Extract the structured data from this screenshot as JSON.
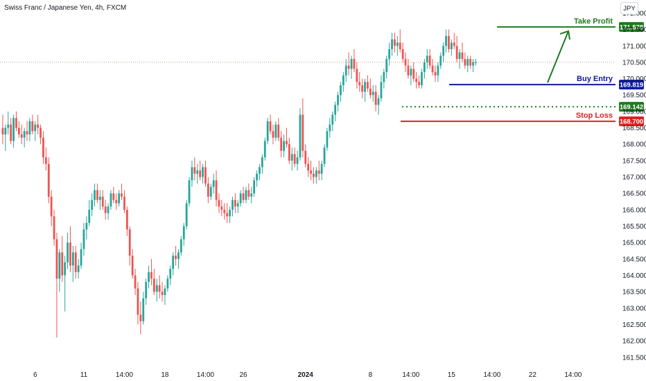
{
  "chart_data": {
    "type": "candlestick",
    "title": "Swiss Franc / Japanese Yen, 4h, FXCM",
    "currency": "JPY",
    "y_ticks": [
      "172.000",
      "171.500",
      "171.000",
      "170.500",
      "170.000",
      "169.500",
      "169.000",
      "168.500",
      "168.000",
      "167.500",
      "167.000",
      "166.500",
      "166.000",
      "165.500",
      "165.000",
      "164.500",
      "164.000",
      "163.500",
      "163.000",
      "162.500",
      "162.000",
      "161.500"
    ],
    "ylim": [
      161.2,
      172.4
    ],
    "x_ticks": [
      {
        "label": "6",
        "bold": false,
        "bar": 12
      },
      {
        "label": "11",
        "bold": false,
        "bar": 30
      },
      {
        "label": "14:00",
        "bold": false,
        "bar": 45
      },
      {
        "label": "18",
        "bold": false,
        "bar": 60
      },
      {
        "label": "14:00",
        "bold": false,
        "bar": 75
      },
      {
        "label": "26",
        "bold": false,
        "bar": 89
      },
      {
        "label": "2024",
        "bold": true,
        "bar": 112
      },
      {
        "label": "8",
        "bold": false,
        "bar": 136
      },
      {
        "label": "14:00",
        "bold": false,
        "bar": 151
      },
      {
        "label": "15",
        "bold": false,
        "bar": 166
      },
      {
        "label": "14:00",
        "bold": false,
        "bar": 181
      },
      {
        "label": "22",
        "bold": false,
        "bar": 196
      },
      {
        "label": "14:00",
        "bold": false,
        "bar": 211
      }
    ],
    "bar_count_window": 235,
    "candles": [
      [
        168.5,
        168.9,
        168.0,
        168.3
      ],
      [
        168.3,
        168.6,
        167.8,
        168.5
      ],
      [
        168.5,
        169.0,
        168.3,
        168.6
      ],
      [
        168.6,
        168.8,
        168.0,
        168.1
      ],
      [
        168.1,
        168.9,
        167.9,
        168.8
      ],
      [
        168.8,
        169.0,
        168.4,
        168.5
      ],
      [
        168.5,
        168.7,
        168.2,
        168.3
      ],
      [
        168.3,
        168.6,
        168.0,
        168.2
      ],
      [
        168.2,
        168.5,
        167.9,
        168.4
      ],
      [
        168.4,
        168.7,
        168.1,
        168.3
      ],
      [
        168.3,
        168.8,
        168.1,
        168.7
      ],
      [
        168.7,
        168.9,
        168.3,
        168.4
      ],
      [
        168.4,
        168.7,
        168.1,
        168.6
      ],
      [
        168.6,
        168.9,
        168.3,
        168.5
      ],
      [
        168.5,
        168.6,
        168.0,
        168.2
      ],
      [
        168.2,
        168.4,
        167.4,
        167.6
      ],
      [
        167.6,
        167.9,
        167.2,
        167.4
      ],
      [
        167.4,
        167.6,
        166.2,
        166.4
      ],
      [
        166.4,
        166.6,
        165.5,
        165.8
      ],
      [
        165.8,
        166.0,
        164.9,
        165.1
      ],
      [
        165.1,
        165.3,
        162.1,
        163.9
      ],
      [
        163.9,
        164.8,
        163.5,
        164.7
      ],
      [
        164.7,
        165.2,
        163.8,
        164.0
      ],
      [
        164.0,
        164.6,
        162.9,
        164.4
      ],
      [
        164.4,
        165.3,
        164.2,
        165.0
      ],
      [
        165.0,
        165.5,
        164.1,
        164.3
      ],
      [
        164.3,
        164.9,
        163.8,
        164.7
      ],
      [
        164.7,
        164.9,
        163.9,
        164.1
      ],
      [
        164.1,
        164.5,
        163.9,
        164.3
      ],
      [
        164.3,
        165.0,
        164.2,
        164.8
      ],
      [
        164.8,
        165.6,
        164.6,
        165.4
      ],
      [
        165.4,
        165.8,
        165.1,
        165.6
      ],
      [
        165.6,
        166.3,
        165.5,
        166.0
      ],
      [
        166.0,
        166.5,
        165.8,
        166.3
      ],
      [
        166.3,
        166.8,
        166.1,
        166.6
      ],
      [
        166.6,
        166.8,
        166.2,
        166.3
      ],
      [
        166.3,
        166.6,
        166.0,
        166.4
      ],
      [
        166.4,
        166.6,
        166.0,
        166.1
      ],
      [
        166.1,
        166.3,
        165.7,
        165.9
      ],
      [
        165.9,
        166.2,
        165.7,
        166.1
      ],
      [
        166.1,
        166.6,
        166.0,
        166.5
      ],
      [
        166.5,
        166.7,
        166.2,
        166.3
      ],
      [
        166.3,
        166.5,
        166.0,
        166.2
      ],
      [
        166.2,
        166.6,
        166.1,
        166.5
      ],
      [
        166.5,
        166.8,
        166.3,
        166.4
      ],
      [
        166.4,
        166.6,
        165.9,
        166.0
      ],
      [
        166.0,
        166.1,
        165.2,
        165.4
      ],
      [
        165.4,
        165.5,
        164.3,
        164.6
      ],
      [
        164.6,
        164.8,
        163.9,
        164.0
      ],
      [
        164.0,
        164.2,
        163.4,
        163.6
      ],
      [
        163.6,
        163.8,
        162.5,
        162.8
      ],
      [
        162.8,
        163.2,
        162.2,
        162.6
      ],
      [
        162.6,
        163.5,
        162.5,
        163.3
      ],
      [
        163.3,
        163.9,
        163.1,
        163.8
      ],
      [
        163.8,
        164.3,
        163.6,
        164.1
      ],
      [
        164.1,
        164.5,
        163.7,
        163.9
      ],
      [
        163.9,
        164.2,
        163.4,
        163.5
      ],
      [
        163.5,
        163.9,
        163.2,
        163.7
      ],
      [
        163.7,
        164.0,
        163.3,
        163.5
      ],
      [
        163.5,
        163.8,
        163.2,
        163.4
      ],
      [
        163.4,
        163.7,
        163.1,
        163.6
      ],
      [
        163.6,
        164.0,
        163.5,
        163.9
      ],
      [
        163.9,
        164.3,
        163.7,
        164.2
      ],
      [
        164.2,
        164.7,
        164.0,
        164.6
      ],
      [
        164.6,
        164.9,
        164.3,
        164.5
      ],
      [
        164.5,
        164.8,
        164.2,
        164.7
      ],
      [
        164.7,
        165.2,
        164.6,
        165.1
      ],
      [
        165.1,
        165.6,
        164.9,
        165.5
      ],
      [
        165.5,
        166.3,
        165.4,
        166.2
      ],
      [
        166.2,
        167.0,
        166.1,
        166.9
      ],
      [
        166.9,
        167.5,
        166.7,
        167.3
      ],
      [
        167.3,
        167.6,
        166.9,
        167.1
      ],
      [
        167.1,
        167.4,
        166.8,
        167.2
      ],
      [
        167.2,
        167.5,
        166.9,
        167.0
      ],
      [
        167.0,
        167.4,
        166.8,
        167.3
      ],
      [
        167.3,
        167.5,
        166.7,
        166.8
      ],
      [
        166.8,
        167.0,
        166.2,
        166.4
      ],
      [
        166.4,
        166.8,
        166.3,
        166.7
      ],
      [
        166.7,
        167.1,
        166.5,
        166.9
      ],
      [
        166.9,
        167.2,
        166.1,
        166.3
      ],
      [
        166.3,
        166.5,
        165.9,
        166.1
      ],
      [
        166.1,
        166.3,
        165.8,
        166.0
      ],
      [
        166.0,
        166.2,
        165.7,
        165.9
      ],
      [
        165.9,
        166.2,
        165.6,
        165.8
      ],
      [
        165.8,
        166.1,
        165.6,
        166.0
      ],
      [
        166.0,
        166.4,
        165.8,
        166.3
      ],
      [
        166.3,
        166.5,
        165.9,
        166.1
      ],
      [
        166.1,
        166.3,
        165.9,
        166.2
      ],
      [
        166.2,
        166.6,
        166.1,
        166.5
      ],
      [
        166.5,
        166.7,
        166.2,
        166.3
      ],
      [
        166.3,
        166.7,
        166.2,
        166.6
      ],
      [
        166.6,
        166.8,
        166.3,
        166.4
      ],
      [
        166.4,
        166.7,
        166.2,
        166.5
      ],
      [
        166.5,
        167.0,
        166.4,
        166.9
      ],
      [
        166.9,
        167.2,
        166.7,
        167.1
      ],
      [
        167.1,
        167.4,
        166.9,
        167.3
      ],
      [
        167.3,
        167.7,
        167.1,
        167.6
      ],
      [
        167.6,
        168.2,
        167.5,
        168.1
      ],
      [
        168.1,
        168.8,
        168.0,
        168.7
      ],
      [
        168.7,
        168.9,
        168.3,
        168.4
      ],
      [
        168.4,
        168.6,
        168.0,
        168.2
      ],
      [
        168.2,
        168.7,
        168.1,
        168.6
      ],
      [
        168.6,
        168.8,
        168.1,
        168.2
      ],
      [
        168.2,
        168.4,
        167.6,
        167.8
      ],
      [
        167.8,
        168.3,
        167.6,
        168.1
      ],
      [
        168.1,
        168.5,
        167.9,
        168.0
      ],
      [
        168.0,
        168.2,
        167.4,
        167.5
      ],
      [
        167.5,
        167.9,
        167.2,
        167.7
      ],
      [
        167.7,
        167.9,
        167.3,
        167.4
      ],
      [
        167.4,
        167.8,
        167.2,
        167.6
      ],
      [
        167.6,
        169.1,
        167.5,
        168.9
      ],
      [
        168.9,
        169.4,
        167.6,
        167.8
      ],
      [
        167.8,
        168.0,
        167.3,
        167.4
      ],
      [
        167.4,
        167.6,
        167.0,
        167.2
      ],
      [
        167.2,
        167.5,
        166.9,
        167.1
      ],
      [
        167.1,
        167.3,
        166.8,
        167.0
      ],
      [
        167.0,
        167.3,
        166.8,
        167.2
      ],
      [
        167.2,
        167.5,
        166.9,
        167.1
      ],
      [
        167.1,
        167.5,
        166.9,
        167.4
      ],
      [
        167.4,
        168.0,
        167.3,
        167.9
      ],
      [
        167.9,
        168.5,
        167.8,
        168.4
      ],
      [
        168.4,
        168.8,
        168.2,
        168.6
      ],
      [
        168.6,
        169.0,
        168.4,
        168.9
      ],
      [
        168.9,
        169.3,
        168.7,
        169.2
      ],
      [
        169.2,
        169.6,
        169.0,
        169.5
      ],
      [
        169.5,
        169.9,
        169.3,
        169.8
      ],
      [
        169.8,
        170.2,
        169.6,
        170.1
      ],
      [
        170.1,
        170.6,
        169.9,
        170.4
      ],
      [
        170.4,
        170.8,
        170.1,
        170.3
      ],
      [
        170.3,
        170.7,
        170.0,
        170.6
      ],
      [
        170.6,
        170.9,
        170.2,
        170.3
      ],
      [
        170.3,
        170.5,
        169.7,
        169.9
      ],
      [
        169.9,
        170.2,
        169.6,
        169.8
      ],
      [
        169.8,
        170.0,
        169.4,
        169.6
      ],
      [
        169.6,
        170.0,
        169.3,
        169.9
      ],
      [
        169.9,
        170.1,
        169.6,
        169.7
      ],
      [
        169.7,
        170.0,
        169.4,
        169.5
      ],
      [
        169.5,
        169.8,
        169.3,
        169.6
      ],
      [
        169.6,
        169.8,
        169.0,
        169.2
      ],
      [
        169.2,
        169.5,
        168.9,
        169.4
      ],
      [
        169.4,
        170.1,
        169.3,
        169.9
      ],
      [
        169.9,
        170.3,
        169.7,
        170.2
      ],
      [
        170.2,
        170.7,
        170.0,
        170.6
      ],
      [
        170.6,
        171.1,
        170.4,
        170.9
      ],
      [
        170.9,
        171.4,
        170.7,
        171.2
      ],
      [
        171.2,
        171.4,
        170.8,
        171.0
      ],
      [
        171.0,
        171.3,
        170.7,
        171.1
      ],
      [
        171.1,
        171.5,
        170.8,
        170.9
      ],
      [
        170.9,
        171.1,
        170.5,
        170.6
      ],
      [
        170.6,
        170.8,
        170.2,
        170.4
      ],
      [
        170.4,
        170.6,
        170.0,
        170.1
      ],
      [
        170.1,
        170.4,
        169.8,
        170.3
      ],
      [
        170.3,
        170.5,
        169.9,
        170.0
      ],
      [
        170.0,
        170.2,
        169.7,
        169.9
      ],
      [
        169.9,
        170.1,
        169.7,
        169.8
      ],
      [
        169.8,
        170.3,
        169.7,
        170.2
      ],
      [
        170.2,
        170.6,
        170.0,
        170.5
      ],
      [
        170.5,
        170.9,
        170.3,
        170.7
      ],
      [
        170.7,
        170.9,
        170.3,
        170.4
      ],
      [
        170.4,
        170.6,
        170.1,
        170.2
      ],
      [
        170.2,
        170.4,
        169.9,
        170.1
      ],
      [
        170.1,
        170.5,
        169.9,
        170.4
      ],
      [
        170.4,
        170.8,
        170.3,
        170.7
      ],
      [
        170.7,
        171.1,
        170.5,
        171.0
      ],
      [
        171.0,
        171.5,
        170.8,
        171.3
      ],
      [
        171.3,
        171.5,
        170.8,
        170.9
      ],
      [
        170.9,
        171.2,
        170.7,
        171.1
      ],
      [
        171.1,
        171.4,
        170.9,
        171.0
      ],
      [
        171.0,
        171.3,
        170.5,
        170.6
      ],
      [
        170.6,
        170.9,
        170.3,
        170.8
      ],
      [
        170.8,
        171.1,
        170.5,
        170.6
      ],
      [
        170.6,
        170.8,
        170.3,
        170.4
      ],
      [
        170.4,
        170.7,
        170.2,
        170.6
      ],
      [
        170.6,
        170.7,
        170.3,
        170.4
      ],
      [
        170.4,
        170.6,
        170.2,
        170.5
      ],
      [
        170.5,
        170.6,
        170.4,
        170.5
      ]
    ],
    "levels": [
      {
        "name": "Take Profit",
        "value": 171.578,
        "label": "171.578",
        "color": "#1e7a1e",
        "style": "solid"
      },
      {
        "name": "Buy Entry",
        "value": 169.819,
        "label": "169.819",
        "color": "#0d1aa0",
        "style": "solid"
      },
      {
        "name": "",
        "value": 169.142,
        "label": "169.142",
        "color": "#1e7a1e",
        "style": "dotted"
      },
      {
        "name": "Stop Loss",
        "value": 168.7,
        "label": "168.700",
        "color": "#e01f1f",
        "style": "solid"
      }
    ],
    "current_price": 170.5,
    "colors": {
      "up": "#26a69a",
      "down": "#ef5350",
      "grid_line": "#e0646480"
    }
  }
}
